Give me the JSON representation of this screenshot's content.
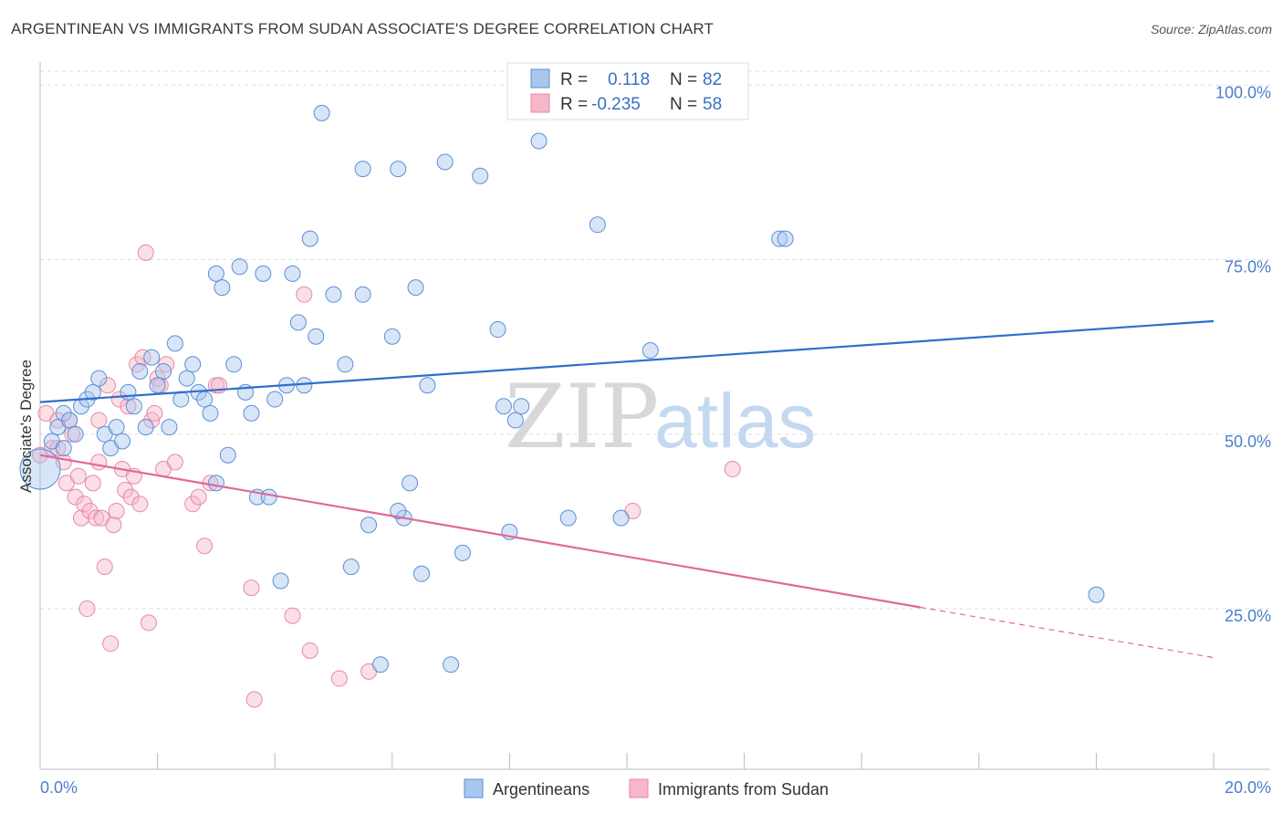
{
  "title": "ARGENTINEAN VS IMMIGRANTS FROM SUDAN ASSOCIATE'S DEGREE CORRELATION CHART",
  "source": "Source: ZipAtlas.com",
  "watermark": {
    "part1": "ZIP",
    "part2": "atlas"
  },
  "colors": {
    "blue_fill": "#a9c6ee",
    "blue_stroke": "#5b8fd6",
    "blue_line": "#2e6fcd",
    "pink_fill": "#f6b7c9",
    "pink_stroke": "#e68aa6",
    "pink_line": "#e0699a",
    "axis_text": "#4a7fcc",
    "grid": "#dddddd"
  },
  "legend_box": {
    "rows": [
      {
        "r_label": "R =",
        "r_value": "0.118",
        "n_label": "N =",
        "n_value": "82",
        "series": "blue"
      },
      {
        "r_label": "R =",
        "r_value": "-0.235",
        "n_label": "N =",
        "n_value": "58",
        "series": "pink"
      }
    ]
  },
  "bottom_legend": [
    "Argentineans",
    "Immigrants from Sudan"
  ],
  "chart_data": {
    "type": "scatter",
    "title": "ARGENTINEAN VS IMMIGRANTS FROM SUDAN ASSOCIATE'S DEGREE CORRELATION CHART",
    "xlabel": "",
    "ylabel": "Associate's Degree",
    "xlim": [
      0,
      20
    ],
    "ylim": [
      2,
      102
    ],
    "x_tick_labels": [
      "0.0%",
      "20.0%"
    ],
    "y_tick_labels": [
      "100.0%",
      "75.0%",
      "50.0%",
      "25.0%"
    ],
    "y_ticks": [
      100,
      75,
      50,
      25
    ],
    "grid": true,
    "legend_position": "top-center",
    "series": [
      {
        "name": "Argentineans",
        "color": "blue",
        "trend": {
          "x0": 0,
          "y0": 54.6,
          "x1": 20,
          "y1": 66.2
        },
        "points": [
          [
            0.0,
            45
          ],
          [
            0.2,
            49
          ],
          [
            0.3,
            51
          ],
          [
            0.4,
            53
          ],
          [
            0.4,
            48
          ],
          [
            0.5,
            52
          ],
          [
            0.6,
            50
          ],
          [
            0.7,
            54
          ],
          [
            0.8,
            55
          ],
          [
            0.9,
            56
          ],
          [
            1.0,
            58
          ],
          [
            1.1,
            50
          ],
          [
            1.2,
            48
          ],
          [
            1.3,
            51
          ],
          [
            1.4,
            49
          ],
          [
            1.5,
            56
          ],
          [
            1.6,
            54
          ],
          [
            1.7,
            59
          ],
          [
            1.8,
            51
          ],
          [
            1.9,
            61
          ],
          [
            2.0,
            57
          ],
          [
            2.1,
            59
          ],
          [
            2.2,
            51
          ],
          [
            2.3,
            63
          ],
          [
            2.4,
            55
          ],
          [
            2.5,
            58
          ],
          [
            2.6,
            60
          ],
          [
            2.7,
            56
          ],
          [
            2.8,
            55
          ],
          [
            2.9,
            53
          ],
          [
            3.0,
            73
          ],
          [
            3.0,
            43
          ],
          [
            3.1,
            71
          ],
          [
            3.2,
            47
          ],
          [
            3.3,
            60
          ],
          [
            3.4,
            74
          ],
          [
            3.5,
            56
          ],
          [
            3.6,
            53
          ],
          [
            3.7,
            41
          ],
          [
            3.8,
            73
          ],
          [
            3.9,
            41
          ],
          [
            4.0,
            55
          ],
          [
            4.1,
            29
          ],
          [
            4.2,
            57
          ],
          [
            4.3,
            73
          ],
          [
            4.4,
            66
          ],
          [
            4.5,
            57
          ],
          [
            4.6,
            78
          ],
          [
            4.7,
            64
          ],
          [
            4.8,
            96
          ],
          [
            5.0,
            70
          ],
          [
            5.2,
            60
          ],
          [
            5.3,
            31
          ],
          [
            5.5,
            88
          ],
          [
            5.5,
            70
          ],
          [
            5.6,
            37
          ],
          [
            5.8,
            17
          ],
          [
            6.0,
            64
          ],
          [
            6.1,
            88
          ],
          [
            6.2,
            38
          ],
          [
            6.3,
            43
          ],
          [
            6.4,
            71
          ],
          [
            6.5,
            30
          ],
          [
            6.6,
            57
          ],
          [
            6.9,
            89
          ],
          [
            7.0,
            17
          ],
          [
            7.2,
            33
          ],
          [
            7.5,
            87
          ],
          [
            7.8,
            65
          ],
          [
            7.9,
            54
          ],
          [
            8.0,
            36
          ],
          [
            8.1,
            52
          ],
          [
            8.2,
            54
          ],
          [
            8.5,
            92
          ],
          [
            9.0,
            38
          ],
          [
            9.5,
            80
          ],
          [
            9.9,
            38
          ],
          [
            10.4,
            62
          ],
          [
            12.6,
            78
          ],
          [
            12.7,
            78
          ],
          [
            18.0,
            27
          ],
          [
            6.1,
            39
          ]
        ]
      },
      {
        "name": "Immigrants from Sudan",
        "color": "pink",
        "trend": {
          "x0": 0,
          "y0": 47.0,
          "x1": 15,
          "y1": 25.2,
          "dash_x1": 20,
          "dash_y1": 18.0
        },
        "points": [
          [
            0.0,
            47
          ],
          [
            0.1,
            53
          ],
          [
            0.2,
            48
          ],
          [
            0.3,
            52
          ],
          [
            0.4,
            46
          ],
          [
            0.45,
            43
          ],
          [
            0.5,
            52
          ],
          [
            0.55,
            50
          ],
          [
            0.6,
            41
          ],
          [
            0.65,
            44
          ],
          [
            0.7,
            38
          ],
          [
            0.75,
            40
          ],
          [
            0.8,
            25
          ],
          [
            0.85,
            39
          ],
          [
            0.9,
            43
          ],
          [
            0.95,
            38
          ],
          [
            1.0,
            52
          ],
          [
            1.05,
            38
          ],
          [
            1.1,
            31
          ],
          [
            1.15,
            57
          ],
          [
            1.2,
            20
          ],
          [
            1.25,
            37
          ],
          [
            1.3,
            39
          ],
          [
            1.35,
            55
          ],
          [
            1.4,
            45
          ],
          [
            1.45,
            42
          ],
          [
            1.5,
            54
          ],
          [
            1.55,
            41
          ],
          [
            1.6,
            44
          ],
          [
            1.65,
            60
          ],
          [
            1.7,
            40
          ],
          [
            1.75,
            61
          ],
          [
            1.8,
            76
          ],
          [
            1.85,
            23
          ],
          [
            1.9,
            52
          ],
          [
            1.95,
            53
          ],
          [
            2.0,
            58
          ],
          [
            2.05,
            57
          ],
          [
            2.1,
            45
          ],
          [
            2.15,
            60
          ],
          [
            2.3,
            46
          ],
          [
            2.6,
            40
          ],
          [
            2.7,
            41
          ],
          [
            2.8,
            34
          ],
          [
            2.9,
            43
          ],
          [
            3.0,
            57
          ],
          [
            3.05,
            57
          ],
          [
            3.6,
            28
          ],
          [
            3.65,
            12
          ],
          [
            4.3,
            24
          ],
          [
            4.5,
            70
          ],
          [
            4.6,
            19
          ],
          [
            5.1,
            15
          ],
          [
            5.6,
            16
          ],
          [
            10.1,
            39
          ],
          [
            11.8,
            45
          ],
          [
            0.3,
            48
          ],
          [
            1.0,
            46
          ]
        ]
      }
    ]
  }
}
